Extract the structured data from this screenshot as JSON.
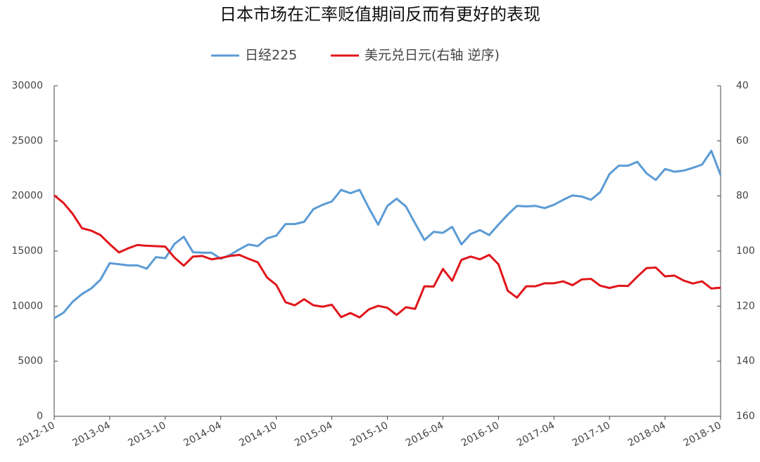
{
  "chart_data": {
    "type": "line",
    "title": "日本市场在汇率贬值期间反而有更好的表现",
    "categories": [
      "2012-10",
      null,
      null,
      null,
      null,
      null,
      "2013-04",
      null,
      null,
      null,
      null,
      null,
      "2013-10",
      null,
      null,
      null,
      null,
      null,
      "2014-04",
      null,
      null,
      null,
      null,
      null,
      "2014-10",
      null,
      null,
      null,
      null,
      null,
      "2015-04",
      null,
      null,
      null,
      null,
      null,
      "2015-10",
      null,
      null,
      null,
      null,
      null,
      "2016-04",
      null,
      null,
      null,
      null,
      null,
      "2016-10",
      null,
      null,
      null,
      null,
      null,
      "2017-04",
      null,
      null,
      null,
      null,
      null,
      "2017-10",
      null,
      null,
      null,
      null,
      null,
      "2018-04",
      null,
      null,
      null,
      null,
      null,
      "2018-10"
    ],
    "series": [
      {
        "name": "日经225",
        "color": "#5b9bd5",
        "axis": "y",
        "values": [
          8900,
          9400,
          10400,
          11100,
          11600,
          12400,
          13900,
          13800,
          13700,
          13700,
          13400,
          14450,
          14350,
          15650,
          16300,
          14900,
          14850,
          14850,
          14300,
          14650,
          15150,
          15600,
          15450,
          16150,
          16400,
          17450,
          17450,
          17650,
          18800,
          19200,
          19500,
          20550,
          20250,
          20550,
          18900,
          17400,
          19100,
          19750,
          19050,
          17500,
          16000,
          16750,
          16650,
          17200,
          15600,
          16550,
          16900,
          16450,
          17400,
          18300,
          19100,
          19050,
          19100,
          18900,
          19200,
          19650,
          20050,
          19950,
          19650,
          20350,
          22000,
          22750,
          22750,
          23100,
          22050,
          21450,
          22450,
          22200,
          22300,
          22550,
          22850,
          24100,
          21900
        ]
      },
      {
        "name": "美元兑日元(右轴 逆序)",
        "color": "#e0161b",
        "axis": "y2",
        "values": [
          79.8,
          82.5,
          86.5,
          91.7,
          92.6,
          94.2,
          97.5,
          100.5,
          99,
          97.8,
          98.1,
          98.2,
          98.4,
          102.4,
          105.3,
          102,
          101.8,
          103,
          102.5,
          101.8,
          101.4,
          102.8,
          104.1,
          109.6,
          112.3,
          118.6,
          119.7,
          117.5,
          119.7,
          120.2,
          119.5,
          124,
          122.5,
          124.1,
          121.2,
          119.9,
          120.6,
          123.2,
          120.4,
          121,
          112.8,
          112.9,
          106.5,
          110.8,
          103.2,
          102,
          103,
          101.4,
          104.8,
          114.4,
          116.9,
          112.8,
          112.8,
          111.7,
          111.7,
          111,
          112.4,
          110.3,
          110.1,
          112.6,
          113.4,
          112.6,
          112.7,
          109.3,
          106.2,
          106,
          109.2,
          108.9,
          110.7,
          111.8,
          111,
          113.6,
          113.3
        ]
      }
    ],
    "ylim": [
      0,
      30000
    ],
    "yticks": [
      0,
      5000,
      10000,
      15000,
      20000,
      25000,
      30000
    ],
    "y2lim": [
      40,
      160
    ],
    "y2ticks": [
      40,
      60,
      80,
      100,
      120,
      140,
      160
    ],
    "y2_inverted": true,
    "legend": "top",
    "grid": false
  }
}
